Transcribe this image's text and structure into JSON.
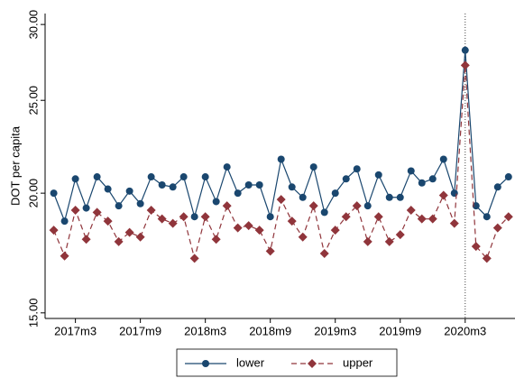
{
  "chart_data": {
    "type": "line",
    "y_axis_label": "DOT per capita",
    "x": [
      684,
      685,
      686,
      687,
      688,
      689,
      690,
      691,
      692,
      693,
      694,
      695,
      696,
      697,
      698,
      699,
      700,
      701,
      702,
      703,
      704,
      705,
      706,
      707,
      708,
      709,
      710,
      711,
      712,
      713,
      714,
      715,
      716,
      717,
      718,
      719,
      720,
      721,
      722,
      723,
      724,
      725,
      726
    ],
    "series": [
      {
        "name": "lower",
        "color": "#1a476f",
        "marker": "circle",
        "dash": false,
        "values": [
          20.0,
          18.7,
          20.7,
          19.3,
          20.8,
          20.2,
          19.4,
          20.1,
          19.5,
          20.8,
          20.4,
          20.3,
          20.8,
          18.9,
          20.8,
          19.6,
          21.3,
          20.0,
          20.4,
          20.4,
          18.9,
          21.7,
          20.3,
          19.8,
          21.3,
          19.1,
          20.0,
          20.7,
          21.2,
          19.4,
          20.9,
          19.8,
          19.8,
          21.1,
          20.5,
          20.7,
          21.7,
          20.0,
          28.2,
          19.4,
          18.9,
          20.3,
          20.8
        ]
      },
      {
        "name": "upper",
        "color": "#90353b",
        "marker": "diamond",
        "dash": true,
        "values": [
          18.3,
          17.2,
          19.2,
          17.9,
          19.1,
          18.7,
          17.8,
          18.2,
          18.0,
          19.2,
          18.8,
          18.6,
          18.9,
          17.1,
          18.9,
          17.9,
          19.4,
          18.4,
          18.5,
          18.3,
          17.4,
          19.7,
          18.7,
          18.0,
          19.4,
          17.3,
          18.3,
          18.9,
          19.4,
          17.8,
          18.9,
          17.8,
          18.1,
          19.2,
          18.8,
          18.8,
          19.9,
          18.6,
          27.2,
          17.6,
          17.1,
          18.4,
          18.9
        ]
      }
    ],
    "xlim": [
      683.2,
      726.6
    ],
    "xticks": [
      {
        "value": 686,
        "label": "2017m3"
      },
      {
        "value": 692,
        "label": "2017m9"
      },
      {
        "value": 698,
        "label": "2018m3"
      },
      {
        "value": 704,
        "label": "2018m9"
      },
      {
        "value": 710,
        "label": "2019m3"
      },
      {
        "value": 716,
        "label": "2019m9"
      },
      {
        "value": 722,
        "label": "2020m3"
      }
    ],
    "ylim": [
      14.8,
      30.8
    ],
    "yticks": [
      {
        "value": 15,
        "label": "15.00"
      },
      {
        "value": 20,
        "label": "20.00"
      },
      {
        "value": 25,
        "label": "25.00"
      },
      {
        "value": 30,
        "label": "30.00"
      }
    ],
    "log_y": true,
    "reference_line_x": 722,
    "legend": "bottom"
  }
}
